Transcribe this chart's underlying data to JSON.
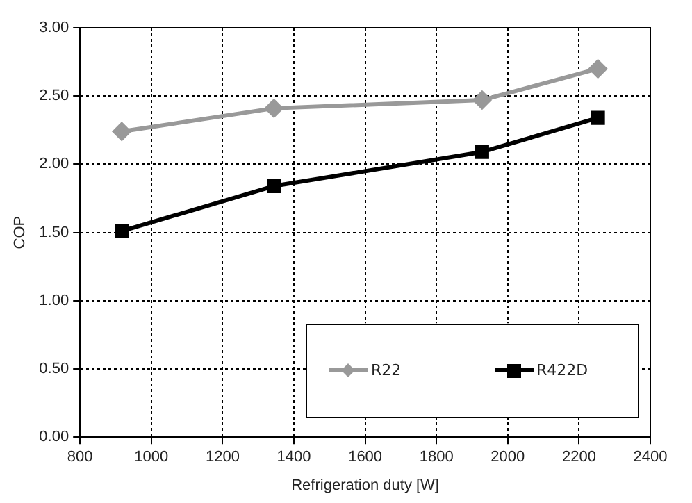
{
  "chart_data": {
    "type": "line",
    "xlabel": "Refrigeration duty [W]",
    "ylabel": "COP",
    "xlim": [
      800,
      2400
    ],
    "xticks": [
      800,
      1000,
      1200,
      1400,
      1600,
      1800,
      2000,
      2200,
      2400
    ],
    "ylim": [
      0,
      3
    ],
    "yticks": [
      {
        "value": 0,
        "label": "0.00"
      },
      {
        "value": 0.5,
        "label": "0.50"
      },
      {
        "value": 1,
        "label": "1.00"
      },
      {
        "value": 1.5,
        "label": "1.50"
      },
      {
        "value": 2,
        "label": "2.00"
      },
      {
        "value": 2.5,
        "label": "2.50"
      },
      {
        "value": 3,
        "label": "3.00"
      }
    ],
    "grid": true,
    "legend": "bottom right",
    "line_style": "solid",
    "series": [
      {
        "name": "R22",
        "color": "#999999",
        "marker": "diamond",
        "x": [
          917,
          1344,
          1928,
          2253
        ],
        "values": [
          2.24,
          2.41,
          2.47,
          2.7
        ]
      },
      {
        "name": "R422D",
        "color": "#000000",
        "marker": "square",
        "x": [
          917,
          1344,
          1928,
          2253
        ],
        "values": [
          1.51,
          1.84,
          2.09,
          2.34
        ]
      }
    ]
  }
}
